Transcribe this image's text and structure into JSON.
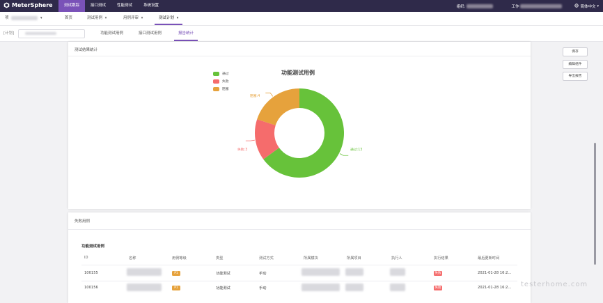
{
  "app": {
    "name": "MeterSphere"
  },
  "topnav": {
    "items": [
      "测试跟踪",
      "接口测试",
      "性能测试",
      "系统设置"
    ],
    "active_index": 0
  },
  "topright": {
    "org_label": "组织:",
    "workspace_label": "工作",
    "language": "简体中文"
  },
  "subnav": {
    "project_prefix": "项",
    "home": "首页",
    "cases": "测试用例",
    "review": "用例评审",
    "plan": "测试计划"
  },
  "tabs": {
    "plan_prefix": "[计划]",
    "items": [
      "功能测试用例",
      "接口测试用例",
      "报告统计"
    ],
    "active_index": 2
  },
  "side_actions": {
    "save": "保存",
    "edit": "编辑组件",
    "export": "导出报告"
  },
  "result_section": {
    "title": "测试结果统计"
  },
  "chart_data": {
    "type": "pie",
    "donut": true,
    "title": "功能测试用例",
    "categories": [
      "通过",
      "失败",
      "阻塞"
    ],
    "values": [
      13,
      3,
      4
    ],
    "colors": [
      "#67c23a",
      "#f56c6c",
      "#e6a23c"
    ],
    "slice_labels": [
      "通过:13",
      "失败:3",
      "阻塞:4"
    ],
    "legend_position": "top-left"
  },
  "failure_section": {
    "title": "失败用例",
    "table_title": "功能测试用例"
  },
  "table": {
    "columns": [
      "ID",
      "名称",
      "用例等级",
      "类型",
      "测试方式",
      "所属模块",
      "所属项目",
      "执行人",
      "执行结果",
      "最后更新时间"
    ],
    "rows": [
      {
        "id": "100155",
        "priority": "P1",
        "type": "功能测试",
        "method": "手动",
        "result": "失败",
        "updated": "2021-01-28 16:2..."
      },
      {
        "id": "100156",
        "priority": "P1",
        "type": "功能测试",
        "method": "手动",
        "result": "失败",
        "updated": "2021-01-28 16:2..."
      }
    ]
  },
  "colors": {
    "brand_dark": "#2f2a4a",
    "accent": "#7a52b8",
    "pass": "#67c23a",
    "fail": "#f56c6c",
    "block": "#e6a23c",
    "priority": "#e6a23c"
  },
  "watermark": "testerhome.com"
}
